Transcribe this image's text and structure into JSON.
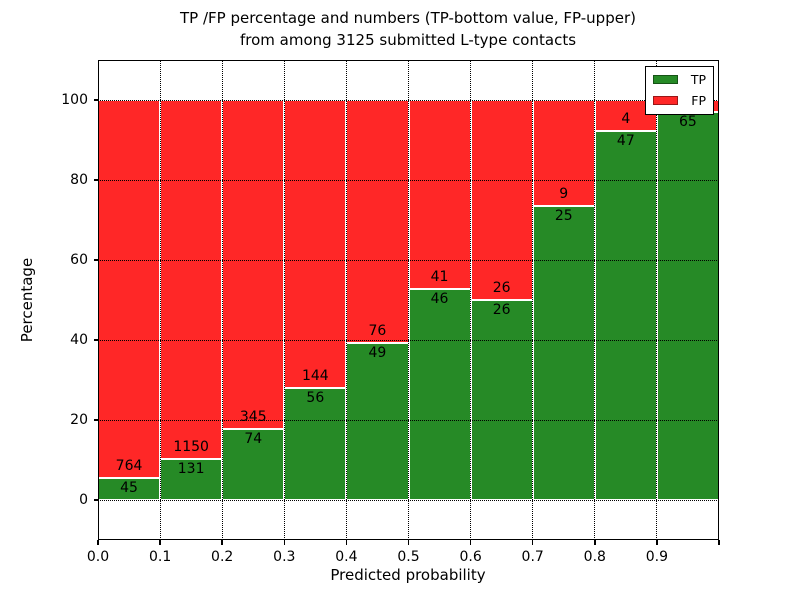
{
  "chart_data": {
    "type": "stacked-bar",
    "title_line1": "TP /FP percentage and numbers (TP-bottom value, FP-upper)",
    "title_line2": "from among 3125 submitted L-type contacts",
    "xlabel": "Predicted probability",
    "ylabel": "Percentage",
    "x_ticks": [
      "0.0",
      "0.1",
      "0.2",
      "0.3",
      "0.4",
      "0.5",
      "0.6",
      "0.7",
      "0.8",
      "0.9"
    ],
    "y_ticks": [
      0,
      20,
      40,
      60,
      80,
      100
    ],
    "ylim": [
      -10,
      110
    ],
    "xlim": [
      0.0,
      1.0
    ],
    "bin_width": 0.1,
    "grid": true,
    "grid_style": "dotted",
    "legend_position": "upper-right",
    "legend": [
      {
        "label": "TP",
        "color": "#268a26"
      },
      {
        "label": "FP",
        "color": "#ff2727"
      }
    ],
    "bars": [
      {
        "bin": "0.0-0.1",
        "tp": 45,
        "fp": 764,
        "tp_label": "45",
        "fp_label": "764",
        "tp_pct": 5.56
      },
      {
        "bin": "0.1-0.2",
        "tp": 131,
        "fp": 1150,
        "tp_label": "131",
        "fp_label": "1150",
        "tp_pct": 10.23
      },
      {
        "bin": "0.2-0.3",
        "tp": 74,
        "fp": 345,
        "tp_label": "74",
        "fp_label": "345",
        "tp_pct": 17.66
      },
      {
        "bin": "0.3-0.4",
        "tp": 56,
        "fp": 144,
        "tp_label": "56",
        "fp_label": "144",
        "tp_pct": 28.0
      },
      {
        "bin": "0.4-0.5",
        "tp": 49,
        "fp": 76,
        "tp_label": "49",
        "fp_label": "76",
        "tp_pct": 39.2
      },
      {
        "bin": "0.5-0.6",
        "tp": 46,
        "fp": 41,
        "tp_label": "46",
        "fp_label": "41",
        "tp_pct": 52.87
      },
      {
        "bin": "0.6-0.7",
        "tp": 26,
        "fp": 26,
        "tp_label": "26",
        "fp_label": "26",
        "tp_pct": 50.0
      },
      {
        "bin": "0.7-0.8",
        "tp": 25,
        "fp": 9,
        "tp_label": "25",
        "fp_label": "9",
        "tp_pct": 73.53
      },
      {
        "bin": "0.8-0.9",
        "tp": 47,
        "fp": 4,
        "tp_label": "47",
        "fp_label": "4",
        "tp_pct": 92.16
      },
      {
        "bin": "0.9-1.0",
        "tp": 65,
        "tp_label": "65",
        "fp_label": "",
        "tp_pct": 97.01
      }
    ]
  }
}
